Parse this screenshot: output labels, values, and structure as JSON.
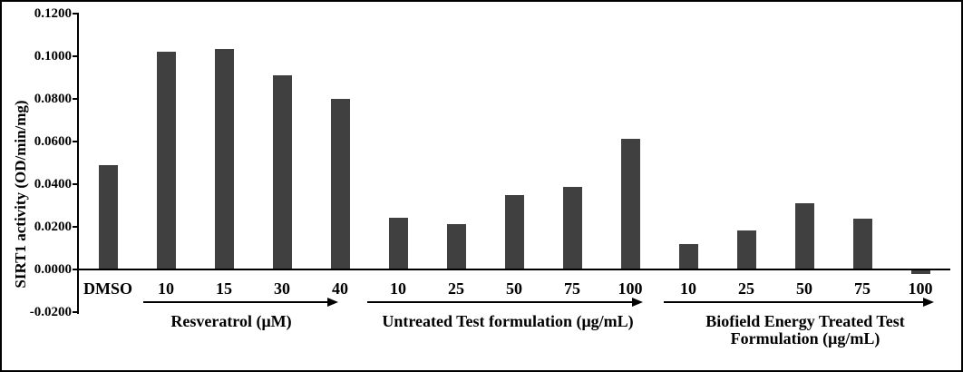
{
  "figure": {
    "background": "#ffffff",
    "border_color": "#000000"
  },
  "chart_data": {
    "type": "bar",
    "title": "",
    "ylabel": "SIRT1 activity  (OD/min/mg)",
    "xlabel": "",
    "bar_color": "#404040",
    "axis_color": "#000000",
    "grid": false,
    "legend": "none",
    "ylim": [
      -0.02,
      0.12
    ],
    "ytick_step": 0.02,
    "ytick_labels": [
      "0.1200",
      "0.1000",
      "0.0800",
      "0.0600",
      "0.0400",
      "0.0200",
      "0.0000",
      "-0.0200"
    ],
    "categories": [
      "DMSO",
      "10",
      "15",
      "30",
      "40",
      "10",
      "25",
      "50",
      "75",
      "100",
      "10",
      "25",
      "50",
      "75",
      "100"
    ],
    "values": [
      0.0485,
      0.1015,
      0.103,
      0.0905,
      0.0795,
      0.024,
      0.021,
      0.0345,
      0.0385,
      0.061,
      0.0115,
      0.018,
      0.0305,
      0.0235,
      -0.0015
    ],
    "groups": [
      {
        "label_lines": [
          "Resveratrol (μM)"
        ],
        "first_bar_index": 1,
        "last_bar_index": 4
      },
      {
        "label_lines": [
          "Untreated Test formulation (μg/mL)"
        ],
        "first_bar_index": 5,
        "last_bar_index": 9
      },
      {
        "label_lines": [
          "Biofield Energy Treated Test",
          "Formulation (μg/mL)"
        ],
        "first_bar_index": 10,
        "last_bar_index": 14
      }
    ]
  }
}
